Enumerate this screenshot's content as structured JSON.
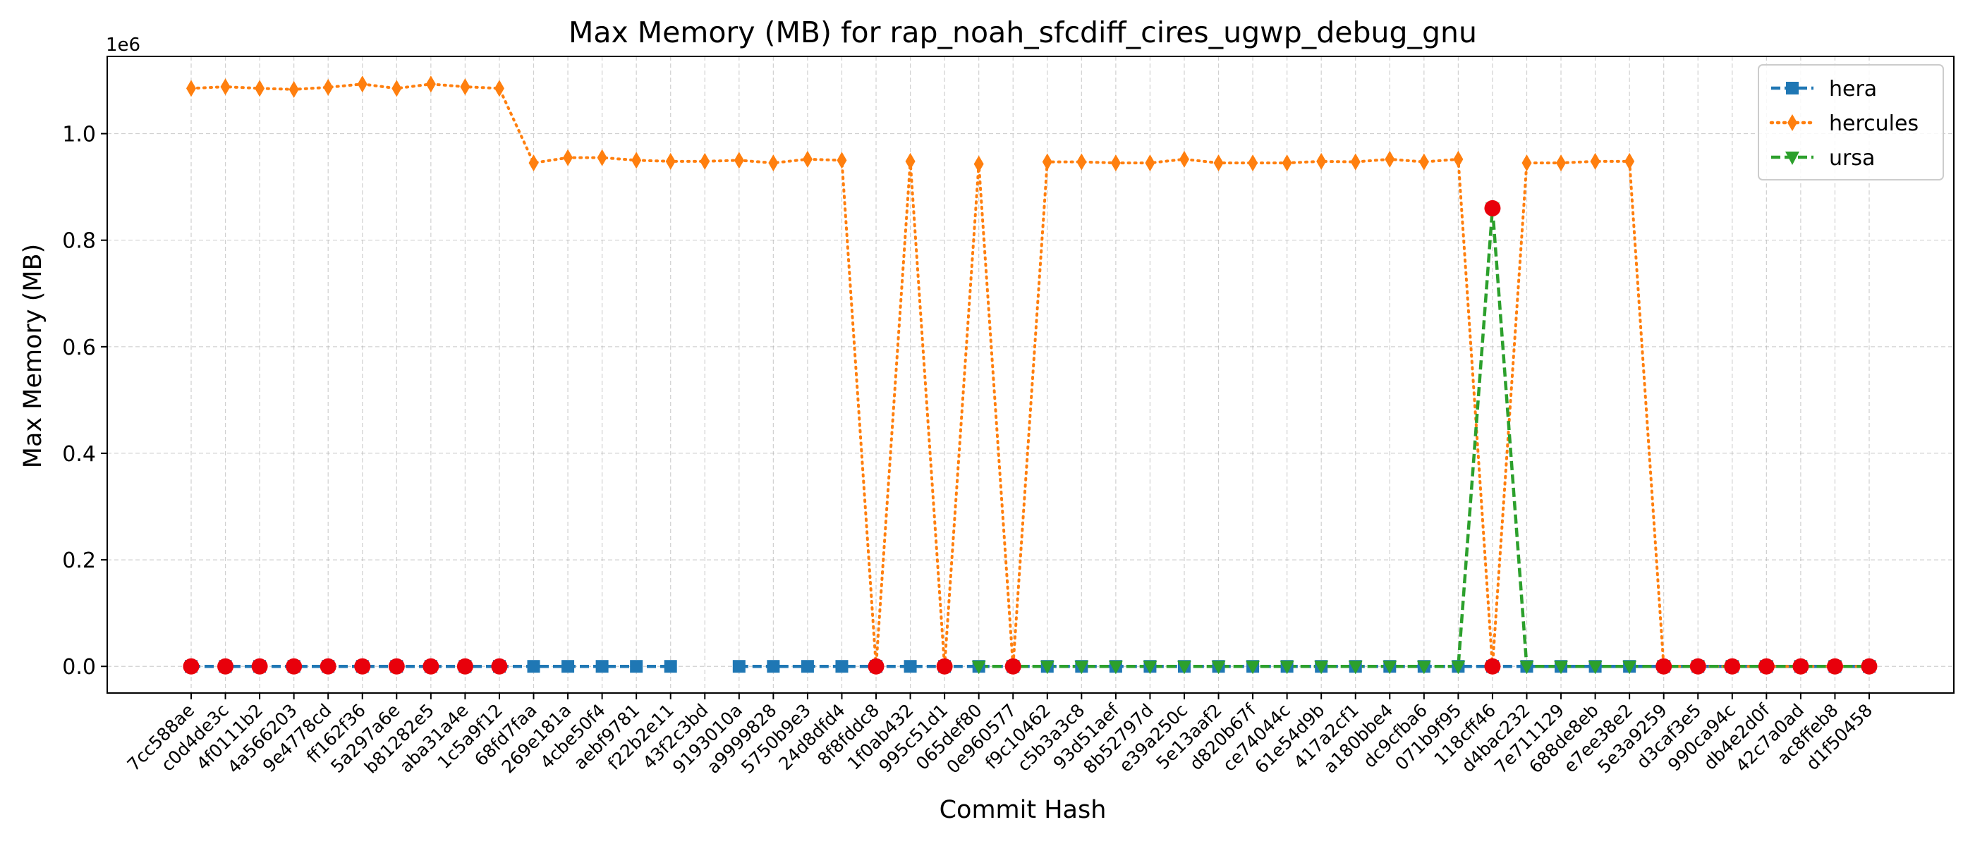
{
  "chart_data": {
    "type": "line",
    "title": "Max Memory (MB) for rap_noah_sfcdiff_cires_ugwp_debug_gnu",
    "xlabel": "Commit Hash",
    "ylabel": "Max Memory (MB)",
    "y_offset_label": "1e6",
    "ylim": [
      -0.05,
      1.145
    ],
    "y_ticks": [
      0.0,
      0.2,
      0.4,
      0.6,
      0.8,
      1.0
    ],
    "y_tick_labels": [
      "0.0",
      "0.2",
      "0.4",
      "0.6",
      "0.8",
      "1.0"
    ],
    "grid": true,
    "legend_position": "top-right",
    "categories": [
      "7cc588ae",
      "c0d4de3c",
      "4f0111b2",
      "4a566203",
      "9e4778cd",
      "ff162f36",
      "5a297a6e",
      "b81282e5",
      "aba31a4e",
      "1c5a9f12",
      "68fd7faa",
      "269e181a",
      "4cbe50f4",
      "aebf9781",
      "f22b2e11",
      "43f2c3bd",
      "9193010a",
      "a9999828",
      "5750b9e3",
      "24d8dfd4",
      "8f8fddc8",
      "1f0ab432",
      "995c51d1",
      "065def80",
      "0e960577",
      "f9c10462",
      "c5b3a3c8",
      "93d51aef",
      "8b52797d",
      "e39a250c",
      "5e13aaf2",
      "d820b67f",
      "ce74044c",
      "61e54d9b",
      "417a2cf1",
      "a180bbe4",
      "dc9cfba6",
      "071b9f95",
      "118cff46",
      "d4bac232",
      "7e711129",
      "688de8eb",
      "e7ee38e2",
      "5e3a9259",
      "d3caf3e5",
      "990ca94c",
      "db4e2d0f",
      "42c7a0ad",
      "ac8ffeb8",
      "d1f50458"
    ],
    "series": [
      {
        "name": "hera",
        "color": "#1f77b4",
        "marker": "square",
        "line_style": "dashed",
        "values": [
          0,
          0,
          0,
          0,
          0,
          0,
          0,
          0,
          0,
          0,
          0,
          0,
          0,
          0,
          0,
          null,
          0,
          0,
          0,
          0,
          0,
          0,
          0,
          0,
          0,
          0,
          0,
          0,
          0,
          0,
          0,
          0,
          0,
          0,
          0,
          0,
          0,
          0,
          0,
          0,
          0,
          0,
          0,
          0,
          0,
          0,
          0,
          0,
          0,
          0
        ]
      },
      {
        "name": "hercules",
        "color": "#ff7f0e",
        "marker": "thin_diamond",
        "line_style": "dotted",
        "values": [
          1.085,
          1.088,
          1.085,
          1.083,
          1.087,
          1.093,
          1.085,
          1.093,
          1.088,
          1.085,
          0.945,
          0.955,
          0.955,
          0.95,
          0.948,
          0.948,
          0.95,
          0.945,
          0.952,
          0.95,
          0,
          0.948,
          0,
          0.943,
          0,
          0.947,
          0.947,
          0.945,
          0.945,
          0.952,
          0.945,
          0.945,
          0.945,
          0.948,
          0.947,
          0.952,
          0.947,
          0.952,
          0,
          0.945,
          0.945,
          0.948,
          0.948,
          0,
          0,
          0,
          0,
          0,
          0,
          0
        ]
      },
      {
        "name": "ursa",
        "color": "#2ca02c",
        "marker": "triangle_down",
        "line_style": "dashed",
        "values": [
          null,
          null,
          null,
          null,
          null,
          null,
          null,
          null,
          null,
          null,
          null,
          null,
          null,
          null,
          null,
          null,
          null,
          null,
          null,
          null,
          null,
          null,
          null,
          0,
          0,
          0,
          0,
          0,
          0,
          0,
          0,
          0,
          0,
          0,
          0,
          0,
          0,
          0,
          0.86,
          0,
          0,
          0,
          0,
          0,
          0,
          0,
          0,
          0,
          0,
          0
        ]
      }
    ],
    "highlight_points": {
      "color": "#e8000b",
      "points": [
        [
          0,
          0
        ],
        [
          1,
          0
        ],
        [
          2,
          0
        ],
        [
          3,
          0
        ],
        [
          4,
          0
        ],
        [
          5,
          0
        ],
        [
          6,
          0
        ],
        [
          7,
          0
        ],
        [
          8,
          0
        ],
        [
          9,
          0
        ],
        [
          20,
          0
        ],
        [
          22,
          0
        ],
        [
          24,
          0
        ],
        [
          38,
          0.86
        ],
        [
          38,
          0
        ],
        [
          43,
          0
        ],
        [
          44,
          0
        ],
        [
          45,
          0
        ],
        [
          46,
          0
        ],
        [
          47,
          0
        ],
        [
          48,
          0
        ],
        [
          49,
          0
        ]
      ]
    }
  }
}
